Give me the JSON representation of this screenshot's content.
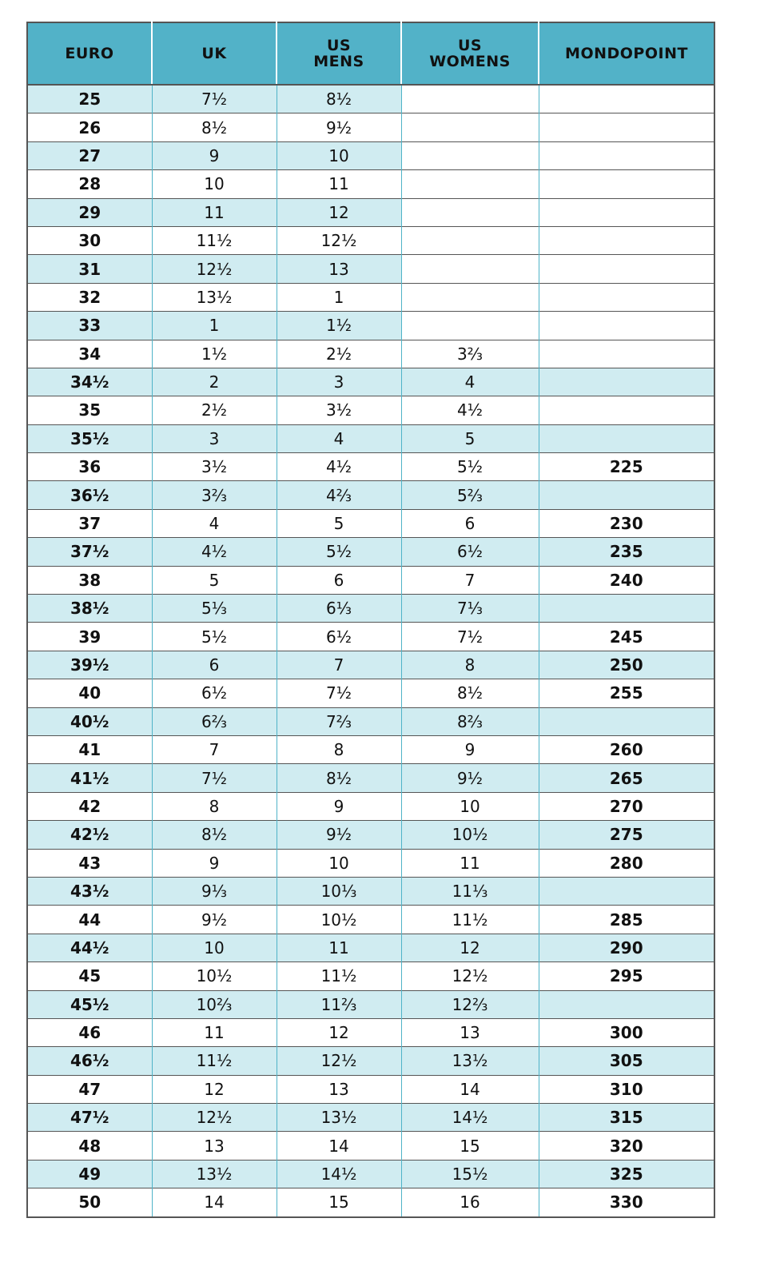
{
  "colors": {
    "header": "#52b2c8",
    "shaded_row": "#d0ecf1",
    "column_divider": "#4fb3c8"
  },
  "table": {
    "headers": [
      "EURO",
      "UK",
      "US\nMENS",
      "US\nWOMENS",
      "MONDOPOINT"
    ],
    "rows": [
      [
        "25",
        "7½",
        "8½",
        null,
        null
      ],
      [
        "26",
        "8½",
        "9½",
        null,
        null
      ],
      [
        "27",
        "9",
        "10",
        null,
        null
      ],
      [
        "28",
        "10",
        "11",
        null,
        null
      ],
      [
        "29",
        "11",
        "12",
        null,
        null
      ],
      [
        "30",
        "11½",
        "12½",
        null,
        null
      ],
      [
        "31",
        "12½",
        "13",
        null,
        null
      ],
      [
        "32",
        "13½",
        "1",
        null,
        null
      ],
      [
        "33",
        "1",
        "1½",
        null,
        null
      ],
      [
        "34",
        "1½",
        "2½",
        "3⅔",
        null
      ],
      [
        "34½",
        "2",
        "3",
        "4",
        null
      ],
      [
        "35",
        "2½",
        "3½",
        "4½",
        null
      ],
      [
        "35½",
        "3",
        "4",
        "5",
        null
      ],
      [
        "36",
        "3½",
        "4½",
        "5½",
        "225"
      ],
      [
        "36½",
        "3⅔",
        "4⅔",
        "5⅔",
        null
      ],
      [
        "37",
        "4",
        "5",
        "6",
        "230"
      ],
      [
        "37½",
        "4½",
        "5½",
        "6½",
        "235"
      ],
      [
        "38",
        "5",
        "6",
        "7",
        "240"
      ],
      [
        "38½",
        "5⅓",
        "6⅓",
        "7⅓",
        null
      ],
      [
        "39",
        "5½",
        "6½",
        "7½",
        "245"
      ],
      [
        "39½",
        "6",
        "7",
        "8",
        "250"
      ],
      [
        "40",
        "6½",
        "7½",
        "8½",
        "255"
      ],
      [
        "40½",
        "6⅔",
        "7⅔",
        "8⅔",
        null
      ],
      [
        "41",
        "7",
        "8",
        "9",
        "260"
      ],
      [
        "41½",
        "7½",
        "8½",
        "9½",
        "265"
      ],
      [
        "42",
        "8",
        "9",
        "10",
        "270"
      ],
      [
        "42½",
        "8½",
        "9½",
        "10½",
        "275"
      ],
      [
        "43",
        "9",
        "10",
        "11",
        "280"
      ],
      [
        "43½",
        "9⅓",
        "10⅓",
        "11⅓",
        null
      ],
      [
        "44",
        "9½",
        "10½",
        "11½",
        "285"
      ],
      [
        "44½",
        "10",
        "11",
        "12",
        "290"
      ],
      [
        "45",
        "10½",
        "11½",
        "12½",
        "295"
      ],
      [
        "45½",
        "10⅔",
        "11⅔",
        "12⅔",
        null
      ],
      [
        "46",
        "11",
        "12",
        "13",
        "300"
      ],
      [
        "46½",
        "11½",
        "12½",
        "13½",
        "305"
      ],
      [
        "47",
        "12",
        "13",
        "14",
        "310"
      ],
      [
        "47½",
        "12½",
        "13½",
        "14½",
        "315"
      ],
      [
        "48",
        "13",
        "14",
        "15",
        "320"
      ],
      [
        "49",
        "13½",
        "14½",
        "15½",
        "325"
      ],
      [
        "50",
        "14",
        "15",
        "16",
        "330"
      ]
    ]
  }
}
